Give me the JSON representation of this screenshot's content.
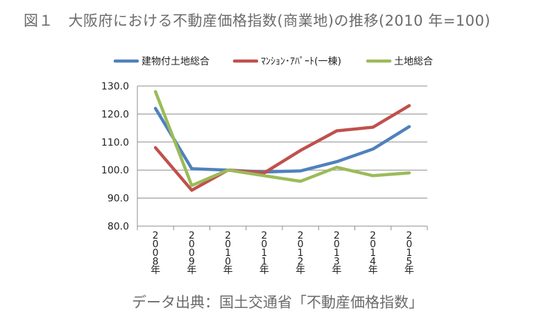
{
  "chart_data": {
    "type": "line",
    "title": "図１　大阪府における不動産価格指数(商業地)の推移(2010 年=100)",
    "source": "データ出典：国土交通省「不動産価格指数」",
    "categories": [
      "2008年",
      "2009年",
      "2010年",
      "2011年",
      "2012年",
      "2013年",
      "2014年",
      "2015年"
    ],
    "ylim": [
      80,
      130
    ],
    "yticks": [
      "80.0",
      "90.0",
      "100.0",
      "110.0",
      "120.0",
      "130.0"
    ],
    "grid": true,
    "legend_position": "top",
    "series": [
      {
        "name": "建物付土地総合",
        "color": "#4f81bd",
        "values": [
          122,
          100.5,
          100,
          99.3,
          99.7,
          103,
          107.5,
          115.5
        ]
      },
      {
        "name": "ﾏﾝｼｮﾝ･ｱﾊﾟｰﾄ(一棟)",
        "color": "#c0504d",
        "values": [
          108,
          92.8,
          100,
          99,
          107,
          114,
          115.3,
          123
        ]
      },
      {
        "name": "土地総合",
        "color": "#9bbb59",
        "values": [
          128,
          94.5,
          100,
          98,
          96,
          101,
          98,
          99
        ]
      }
    ]
  }
}
